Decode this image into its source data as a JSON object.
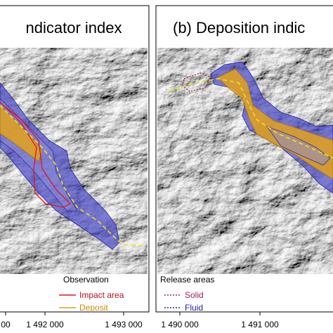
{
  "panels": [
    {
      "title": "ndicator index",
      "legend": {
        "title": "Observation",
        "items": [
          "Impact area",
          "Deposit"
        ]
      },
      "x_labels": [
        "00",
        "1 492 000",
        "1 493 000"
      ]
    },
    {
      "title": "(b) Deposition indic",
      "legend": {
        "title": "Release areas",
        "items": [
          "Solid",
          "Fluid"
        ]
      },
      "x_labels": [
        "1 490 000",
        "1 491 000"
      ]
    }
  ]
}
